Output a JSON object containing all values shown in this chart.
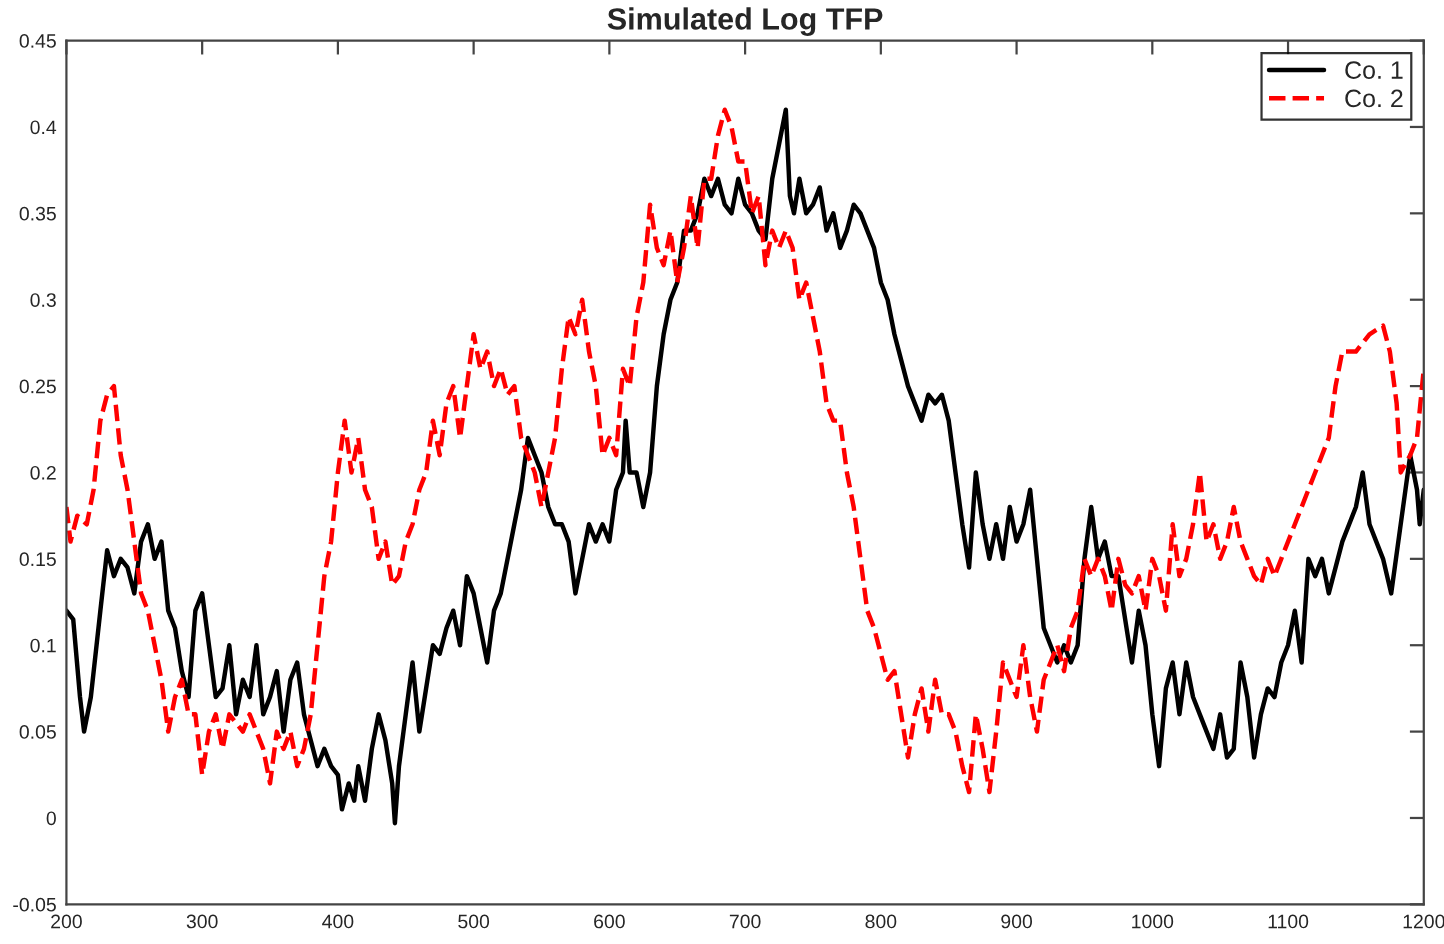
{
  "chart_data": {
    "type": "line",
    "title": "Simulated Log TFP",
    "xlim": [
      200,
      1200
    ],
    "ylim": [
      -0.05,
      0.45
    ],
    "xticks": [
      200,
      300,
      400,
      500,
      600,
      700,
      800,
      900,
      1000,
      1100,
      1200
    ],
    "yticks": [
      -0.05,
      0,
      0.05,
      0.1,
      0.15,
      0.2,
      0.25,
      0.3,
      0.35,
      0.4,
      0.45
    ],
    "grid": false,
    "legend": "top right",
    "marker": "none",
    "series": [
      {
        "name": "Co. 1",
        "color": "#000000",
        "line_style": "solid",
        "x": [
          200,
          205,
          210,
          213,
          218,
          225,
          230,
          235,
          240,
          245,
          250,
          255,
          260,
          265,
          270,
          275,
          280,
          285,
          290,
          295,
          300,
          305,
          310,
          315,
          320,
          325,
          330,
          335,
          340,
          345,
          350,
          355,
          360,
          365,
          370,
          375,
          380,
          385,
          390,
          395,
          400,
          403,
          408,
          412,
          415,
          420,
          425,
          430,
          435,
          440,
          442,
          445,
          450,
          455,
          460,
          465,
          470,
          475,
          480,
          485,
          490,
          495,
          500,
          505,
          510,
          515,
          520,
          530,
          535,
          540,
          545,
          550,
          555,
          560,
          565,
          570,
          575,
          580,
          585,
          590,
          595,
          600,
          605,
          610,
          612,
          615,
          620,
          625,
          630,
          635,
          640,
          645,
          650,
          655,
          660,
          665,
          670,
          675,
          680,
          685,
          690,
          695,
          700,
          705,
          710,
          715,
          720,
          725,
          730,
          733,
          736,
          740,
          745,
          750,
          755,
          760,
          765,
          770,
          775,
          780,
          785,
          790,
          795,
          800,
          805,
          810,
          815,
          820,
          825,
          830,
          835,
          840,
          845,
          850,
          855,
          860,
          865,
          870,
          875,
          880,
          885,
          890,
          895,
          900,
          905,
          910,
          915,
          920,
          930,
          935,
          940,
          945,
          950,
          955,
          960,
          965,
          970,
          975,
          985,
          990,
          995,
          1000,
          1005,
          1010,
          1015,
          1020,
          1025,
          1030,
          1035,
          1040,
          1045,
          1050,
          1055,
          1060,
          1065,
          1070,
          1075,
          1080,
          1085,
          1090,
          1095,
          1100,
          1105,
          1110,
          1115,
          1120,
          1125,
          1130,
          1140,
          1150,
          1155,
          1160,
          1165,
          1170,
          1176,
          1183,
          1190,
          1195,
          1197,
          1200
        ],
        "values": [
          0.12,
          0.115,
          0.07,
          0.05,
          0.07,
          0.12,
          0.155,
          0.14,
          0.15,
          0.145,
          0.13,
          0.16,
          0.17,
          0.15,
          0.16,
          0.12,
          0.11,
          0.085,
          0.07,
          0.12,
          0.13,
          0.1,
          0.07,
          0.075,
          0.1,
          0.06,
          0.08,
          0.07,
          0.1,
          0.06,
          0.07,
          0.085,
          0.05,
          0.08,
          0.09,
          0.06,
          0.045,
          0.03,
          0.04,
          0.03,
          0.025,
          0.005,
          0.02,
          0.01,
          0.03,
          0.01,
          0.04,
          0.06,
          0.045,
          0.02,
          -0.003,
          0.03,
          0.06,
          0.09,
          0.05,
          0.075,
          0.1,
          0.095,
          0.11,
          0.12,
          0.1,
          0.14,
          0.13,
          0.11,
          0.09,
          0.12,
          0.13,
          0.17,
          0.19,
          0.22,
          0.21,
          0.2,
          0.18,
          0.17,
          0.17,
          0.16,
          0.13,
          0.15,
          0.17,
          0.16,
          0.17,
          0.16,
          0.19,
          0.2,
          0.23,
          0.2,
          0.2,
          0.18,
          0.2,
          0.25,
          0.28,
          0.3,
          0.31,
          0.34,
          0.34,
          0.35,
          0.37,
          0.36,
          0.37,
          0.355,
          0.35,
          0.37,
          0.355,
          0.35,
          0.34,
          0.335,
          0.37,
          0.39,
          0.41,
          0.36,
          0.35,
          0.37,
          0.35,
          0.355,
          0.365,
          0.34,
          0.35,
          0.33,
          0.34,
          0.355,
          0.35,
          0.34,
          0.33,
          0.31,
          0.3,
          0.28,
          0.265,
          0.25,
          0.24,
          0.23,
          0.245,
          0.24,
          0.245,
          0.23,
          0.2,
          0.17,
          0.145,
          0.2,
          0.17,
          0.15,
          0.17,
          0.15,
          0.18,
          0.16,
          0.17,
          0.19,
          0.15,
          0.11,
          0.09,
          0.1,
          0.09,
          0.1,
          0.15,
          0.18,
          0.15,
          0.16,
          0.14,
          0.14,
          0.09,
          0.12,
          0.1,
          0.06,
          0.03,
          0.075,
          0.09,
          0.06,
          0.09,
          0.07,
          0.06,
          0.05,
          0.04,
          0.06,
          0.035,
          0.04,
          0.09,
          0.07,
          0.035,
          0.06,
          0.075,
          0.07,
          0.09,
          0.1,
          0.12,
          0.09,
          0.15,
          0.14,
          0.15,
          0.13,
          0.16,
          0.18,
          0.2,
          0.17,
          0.16,
          0.15,
          0.13,
          0.17,
          0.21,
          0.19,
          0.17,
          0.19
        ]
      },
      {
        "name": "Co. 2",
        "color": "#ff0000",
        "line_style": "dashed",
        "x": [
          200,
          203,
          208,
          215,
          220,
          225,
          230,
          235,
          240,
          245,
          250,
          255,
          260,
          265,
          270,
          275,
          280,
          285,
          290,
          295,
          300,
          305,
          310,
          315,
          320,
          330,
          335,
          340,
          345,
          350,
          355,
          360,
          365,
          370,
          375,
          380,
          385,
          390,
          395,
          400,
          405,
          410,
          415,
          420,
          425,
          430,
          435,
          440,
          445,
          450,
          455,
          460,
          465,
          470,
          475,
          480,
          485,
          490,
          495,
          500,
          505,
          510,
          515,
          520,
          525,
          530,
          535,
          540,
          545,
          550,
          555,
          560,
          565,
          570,
          575,
          580,
          585,
          590,
          595,
          600,
          605,
          610,
          615,
          620,
          625,
          630,
          635,
          640,
          645,
          650,
          655,
          660,
          665,
          670,
          675,
          680,
          685,
          690,
          695,
          700,
          705,
          710,
          715,
          720,
          725,
          730,
          735,
          740,
          745,
          750,
          755,
          760,
          765,
          770,
          775,
          780,
          785,
          790,
          795,
          800,
          805,
          810,
          815,
          820,
          825,
          830,
          835,
          840,
          845,
          850,
          855,
          860,
          865,
          870,
          875,
          880,
          885,
          890,
          895,
          900,
          905,
          910,
          915,
          920,
          925,
          930,
          935,
          940,
          945,
          950,
          955,
          960,
          965,
          970,
          975,
          980,
          985,
          990,
          995,
          1000,
          1005,
          1010,
          1015,
          1020,
          1025,
          1030,
          1035,
          1040,
          1045,
          1050,
          1055,
          1060,
          1065,
          1070,
          1075,
          1080,
          1085,
          1090,
          1095,
          1100,
          1110,
          1120,
          1130,
          1135,
          1140,
          1150,
          1160,
          1170,
          1175,
          1180,
          1183,
          1190,
          1195,
          1200
        ],
        "values": [
          0.18,
          0.16,
          0.175,
          0.17,
          0.19,
          0.23,
          0.245,
          0.25,
          0.21,
          0.19,
          0.16,
          0.13,
          0.12,
          0.1,
          0.08,
          0.05,
          0.07,
          0.08,
          0.06,
          0.06,
          0.025,
          0.05,
          0.06,
          0.04,
          0.06,
          0.05,
          0.06,
          0.05,
          0.04,
          0.02,
          0.05,
          0.04,
          0.05,
          0.03,
          0.04,
          0.06,
          0.1,
          0.14,
          0.16,
          0.2,
          0.23,
          0.2,
          0.22,
          0.19,
          0.18,
          0.15,
          0.16,
          0.135,
          0.14,
          0.16,
          0.17,
          0.19,
          0.2,
          0.23,
          0.21,
          0.24,
          0.25,
          0.22,
          0.25,
          0.28,
          0.26,
          0.27,
          0.25,
          0.26,
          0.245,
          0.25,
          0.22,
          0.21,
          0.2,
          0.18,
          0.2,
          0.22,
          0.26,
          0.29,
          0.28,
          0.3,
          0.27,
          0.25,
          0.21,
          0.22,
          0.21,
          0.26,
          0.25,
          0.29,
          0.31,
          0.355,
          0.33,
          0.32,
          0.34,
          0.31,
          0.33,
          0.36,
          0.33,
          0.37,
          0.37,
          0.395,
          0.41,
          0.4,
          0.38,
          0.38,
          0.35,
          0.36,
          0.32,
          0.34,
          0.33,
          0.34,
          0.33,
          0.3,
          0.31,
          0.29,
          0.27,
          0.24,
          0.23,
          0.23,
          0.2,
          0.18,
          0.15,
          0.12,
          0.11,
          0.095,
          0.08,
          0.085,
          0.06,
          0.035,
          0.06,
          0.075,
          0.05,
          0.08,
          0.06,
          0.06,
          0.05,
          0.03,
          0.015,
          0.06,
          0.04,
          0.015,
          0.05,
          0.09,
          0.08,
          0.07,
          0.1,
          0.07,
          0.05,
          0.08,
          0.09,
          0.1,
          0.085,
          0.11,
          0.12,
          0.15,
          0.14,
          0.15,
          0.14,
          0.12,
          0.15,
          0.135,
          0.13,
          0.14,
          0.12,
          0.15,
          0.14,
          0.12,
          0.17,
          0.14,
          0.15,
          0.17,
          0.2,
          0.16,
          0.17,
          0.15,
          0.16,
          0.18,
          0.16,
          0.15,
          0.14,
          0.135,
          0.15,
          0.14,
          0.15,
          0.16,
          0.18,
          0.2,
          0.22,
          0.25,
          0.27,
          0.27,
          0.28,
          0.285,
          0.27,
          0.24,
          0.2,
          0.21,
          0.22,
          0.26
        ]
      }
    ]
  }
}
